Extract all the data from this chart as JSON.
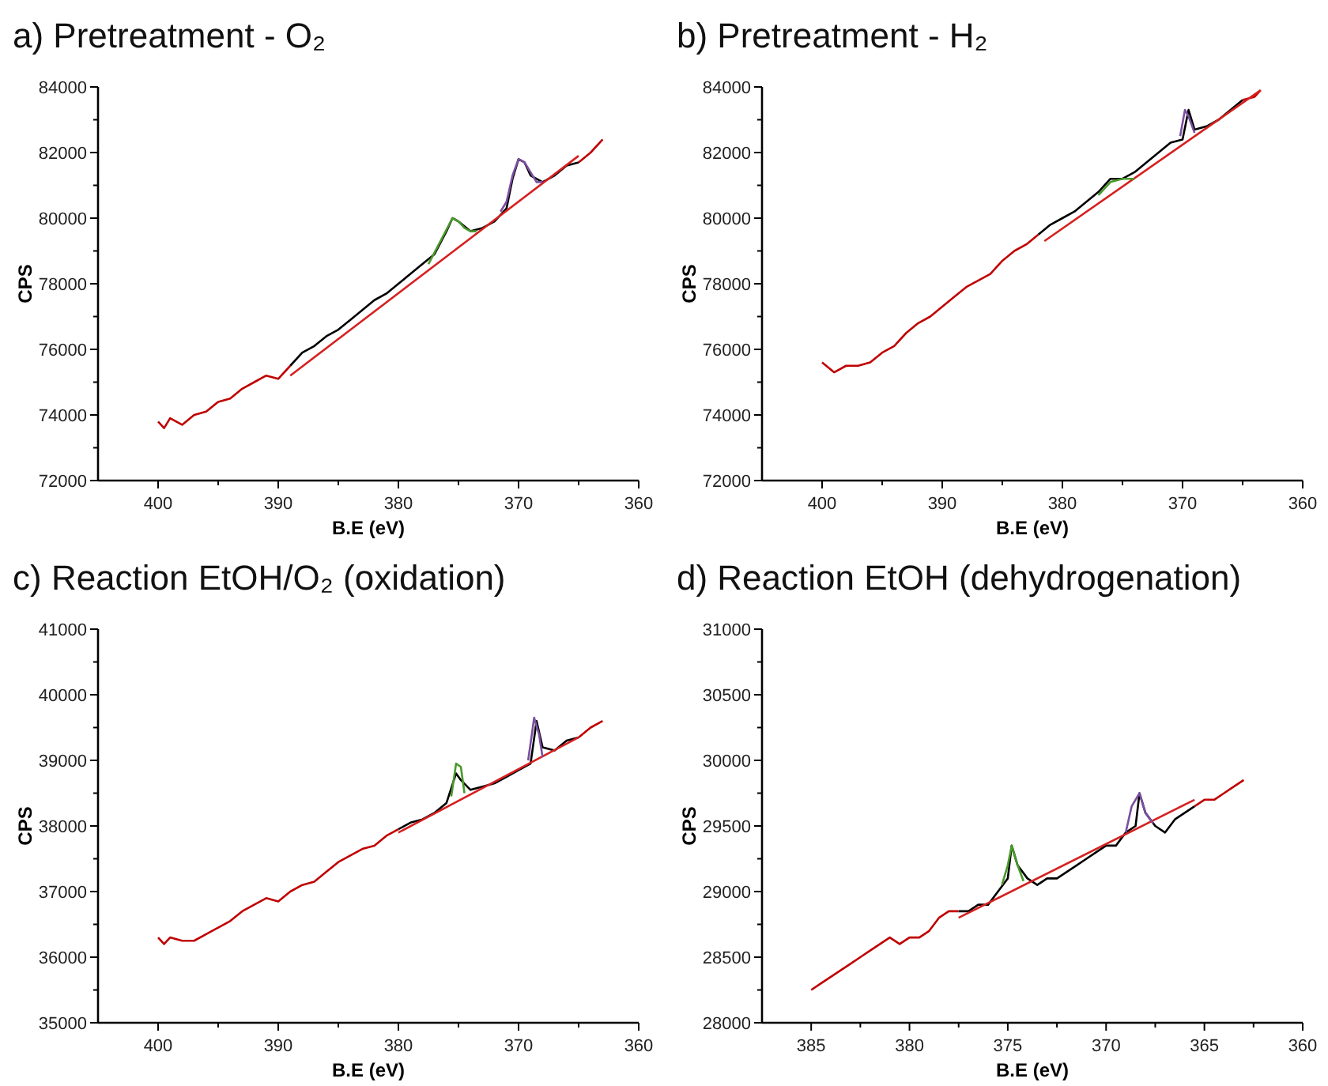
{
  "chart_data": [
    {
      "type": "line",
      "title": "a) Pretreatment - O₂",
      "xlabel": "B.E (eV)",
      "ylabel": "CPS",
      "xlim": [
        405,
        360
      ],
      "xticks": [
        400,
        {
          "value": 395,
          "label": null
        },
        390,
        {
          "value": 385,
          "label": null
        },
        380,
        {
          "value": 375,
          "label": null
        },
        370,
        {
          "value": 365,
          "label": null
        },
        360
      ],
      "ylim": [
        72000,
        84000
      ],
      "yticks": [
        72000,
        {
          "value": 73000,
          "label": null
        },
        74000,
        {
          "value": 75000,
          "label": null
        },
        76000,
        {
          "value": 77000,
          "label": null
        },
        78000,
        {
          "value": 79000,
          "label": null
        },
        80000,
        {
          "value": 81000,
          "label": null
        },
        82000,
        {
          "value": 83000,
          "label": null
        },
        84000
      ],
      "grid": false,
      "marker": "none",
      "series": [
        {
          "color": "#000000",
          "x": [
            389,
            388,
            387,
            386,
            385,
            384,
            383,
            382,
            381,
            380,
            379,
            378,
            377,
            376,
            375.5,
            375,
            374,
            373,
            372,
            371,
            370.5,
            370,
            369.5,
            369,
            368,
            367,
            366,
            365
          ],
          "values": [
            75500,
            75900,
            76100,
            76400,
            76600,
            76900,
            77200,
            77500,
            77700,
            78000,
            78300,
            78600,
            78900,
            79600,
            80000,
            79900,
            79600,
            79700,
            79900,
            80300,
            81200,
            81800,
            81700,
            81300,
            81100,
            81300,
            81600,
            81700
          ]
        },
        {
          "color": "#c00000",
          "x": [
            400,
            399.5,
            399,
            398,
            397,
            396,
            395,
            394,
            393,
            392,
            391,
            390,
            389
          ],
          "values": [
            73800,
            73600,
            73900,
            73700,
            74000,
            74100,
            74400,
            74500,
            74800,
            75000,
            75200,
            75100,
            75500
          ]
        },
        {
          "color": "#c00000",
          "x": [
            365,
            364,
            363
          ],
          "values": [
            81700,
            82000,
            82400
          ]
        },
        {
          "color": "#d62020",
          "x": [
            389,
            365
          ],
          "values": [
            75200,
            81900
          ]
        },
        {
          "color": "#4a9a2a",
          "x": [
            377.5,
            376.5,
            375.5,
            375,
            374.5,
            374,
            373.5
          ],
          "values": [
            78600,
            79300,
            80000,
            79900,
            79700,
            79600,
            79600
          ]
        },
        {
          "color": "#7b4fa0",
          "x": [
            371.5,
            371,
            370.5,
            370,
            369.5,
            369,
            368.5,
            368
          ],
          "values": [
            80200,
            80500,
            81300,
            81800,
            81700,
            81400,
            81100,
            81100
          ]
        }
      ]
    },
    {
      "type": "line",
      "title": "b) Pretreatment - H₂",
      "xlabel": "B.E (eV)",
      "ylabel": "CPS",
      "xlim": [
        405,
        360
      ],
      "xticks": [
        400,
        {
          "value": 395,
          "label": null
        },
        390,
        {
          "value": 385,
          "label": null
        },
        380,
        {
          "value": 375,
          "label": null
        },
        370,
        {
          "value": 365,
          "label": null
        },
        360
      ],
      "ylim": [
        72000,
        84000
      ],
      "yticks": [
        72000,
        {
          "value": 73000,
          "label": null
        },
        74000,
        {
          "value": 75000,
          "label": null
        },
        76000,
        {
          "value": 77000,
          "label": null
        },
        78000,
        {
          "value": 79000,
          "label": null
        },
        80000,
        {
          "value": 81000,
          "label": null
        },
        82000,
        {
          "value": 83000,
          "label": null
        },
        84000
      ],
      "grid": false,
      "marker": "none",
      "series": [
        {
          "color": "#000000",
          "x": [
            382,
            381,
            380,
            379,
            378,
            377,
            376,
            375,
            374,
            373,
            372,
            371,
            370,
            369.5,
            369,
            368,
            367,
            366,
            365
          ],
          "values": [
            79500,
            79800,
            80000,
            80200,
            80500,
            80800,
            81200,
            81200,
            81400,
            81700,
            82000,
            82300,
            82400,
            83300,
            82700,
            82800,
            83000,
            83300,
            83600
          ]
        },
        {
          "color": "#c00000",
          "x": [
            400,
            399,
            398,
            397,
            396,
            395,
            394,
            393,
            392,
            391,
            390,
            389,
            388,
            387,
            386,
            385,
            384,
            383,
            382
          ],
          "values": [
            75600,
            75300,
            75500,
            75500,
            75600,
            75900,
            76100,
            76500,
            76800,
            77000,
            77300,
            77600,
            77900,
            78100,
            78300,
            78700,
            79000,
            79200,
            79500
          ]
        },
        {
          "color": "#c00000",
          "x": [
            365,
            364,
            363.5
          ],
          "values": [
            83600,
            83700,
            83900
          ]
        },
        {
          "color": "#d62020",
          "x": [
            381.5,
            363.5
          ],
          "values": [
            79300,
            83900
          ]
        },
        {
          "color": "#4a9a2a",
          "x": [
            377,
            376,
            375,
            374
          ],
          "values": [
            80700,
            81100,
            81200,
            81200
          ]
        },
        {
          "color": "#7b4fa0",
          "x": [
            370.2,
            369.8,
            369.5,
            369
          ],
          "values": [
            82500,
            83300,
            83100,
            82600
          ]
        }
      ]
    },
    {
      "type": "line",
      "title": "c) Reaction EtOH/O₂ (oxidation)",
      "xlabel": "B.E (eV)",
      "ylabel": "CPS",
      "xlim": [
        405,
        360
      ],
      "xticks": [
        400,
        {
          "value": 395,
          "label": null
        },
        390,
        {
          "value": 385,
          "label": null
        },
        380,
        {
          "value": 375,
          "label": null
        },
        370,
        {
          "value": 365,
          "label": null
        },
        360
      ],
      "ylim": [
        35000,
        41000
      ],
      "yticks": [
        35000,
        {
          "value": 35500,
          "label": null
        },
        36000,
        {
          "value": 36500,
          "label": null
        },
        37000,
        {
          "value": 37500,
          "label": null
        },
        38000,
        {
          "value": 38500,
          "label": null
        },
        39000,
        {
          "value": 39500,
          "label": null
        },
        40000,
        {
          "value": 40500,
          "label": null
        },
        41000
      ],
      "grid": false,
      "marker": "none",
      "series": [
        {
          "color": "#000000",
          "x": [
            380,
            379,
            378,
            377,
            376,
            375.2,
            374.8,
            374,
            373,
            372,
            371,
            370,
            369,
            368.5,
            368,
            367,
            366,
            365
          ],
          "values": [
            37950,
            38050,
            38100,
            38200,
            38350,
            38800,
            38700,
            38550,
            38600,
            38650,
            38750,
            38850,
            38950,
            39600,
            39200,
            39150,
            39300,
            39350
          ]
        },
        {
          "color": "#c00000",
          "x": [
            400,
            399.5,
            399,
            398,
            397,
            396,
            395,
            394,
            393,
            392,
            391,
            390,
            389,
            388,
            387,
            386,
            385,
            384,
            383,
            382,
            381,
            380
          ],
          "values": [
            36300,
            36200,
            36300,
            36250,
            36250,
            36350,
            36450,
            36550,
            36700,
            36800,
            36900,
            36850,
            37000,
            37100,
            37150,
            37300,
            37450,
            37550,
            37650,
            37700,
            37850,
            37950
          ]
        },
        {
          "color": "#c00000",
          "x": [
            365,
            364,
            363
          ],
          "values": [
            39350,
            39500,
            39600
          ]
        },
        {
          "color": "#d62020",
          "x": [
            380,
            365
          ],
          "values": [
            37900,
            39350
          ]
        },
        {
          "color": "#4a9a2a",
          "x": [
            375.6,
            375.2,
            374.8,
            374.5
          ],
          "values": [
            38450,
            38950,
            38900,
            38500
          ]
        },
        {
          "color": "#7b4fa0",
          "x": [
            369.2,
            368.7,
            368.3,
            368
          ],
          "values": [
            39000,
            39650,
            39400,
            39050
          ]
        }
      ]
    },
    {
      "type": "line",
      "title": "d) Reaction EtOH (dehydrogenation)",
      "xlabel": "B.E (eV)",
      "ylabel": "CPS",
      "xlim": [
        387.5,
        360
      ],
      "xticks": [
        385,
        {
          "value": 382.5,
          "label": null
        },
        380,
        {
          "value": 377.5,
          "label": null
        },
        375,
        {
          "value": 372.5,
          "label": null
        },
        370,
        {
          "value": 367.5,
          "label": null
        },
        365,
        {
          "value": 362.5,
          "label": null
        },
        360
      ],
      "ylim": [
        28000,
        31000
      ],
      "yticks": [
        28000,
        {
          "value": 28250,
          "label": null
        },
        28500,
        {
          "value": 28750,
          "label": null
        },
        29000,
        {
          "value": 29250,
          "label": null
        },
        29500,
        {
          "value": 29750,
          "label": null
        },
        30000,
        {
          "value": 30250,
          "label": null
        },
        30500,
        {
          "value": 30750,
          "label": null
        },
        31000
      ],
      "grid": false,
      "marker": "none",
      "series": [
        {
          "color": "#000000",
          "x": [
            377.5,
            377,
            376.5,
            376,
            375.5,
            375,
            374.8,
            374.5,
            374,
            373.5,
            373,
            372.5,
            372,
            371.5,
            371,
            370.5,
            370,
            369.5,
            369,
            368.5,
            368.3,
            368,
            367.5,
            367,
            366.5,
            366,
            365.5
          ],
          "values": [
            28850,
            28850,
            28900,
            28900,
            29000,
            29100,
            29350,
            29200,
            29100,
            29050,
            29100,
            29100,
            29150,
            29200,
            29250,
            29300,
            29350,
            29350,
            29450,
            29500,
            29750,
            29600,
            29500,
            29450,
            29550,
            29600,
            29650
          ]
        },
        {
          "color": "#c00000",
          "x": [
            385,
            384.5,
            384,
            383.5,
            383,
            382.5,
            382,
            381.5,
            381,
            380.5,
            380,
            379.5,
            379,
            378.5,
            378,
            377.5
          ],
          "values": [
            28250,
            28300,
            28350,
            28400,
            28450,
            28500,
            28550,
            28600,
            28650,
            28600,
            28650,
            28650,
            28700,
            28800,
            28850,
            28850
          ]
        },
        {
          "color": "#c00000",
          "x": [
            365.5,
            365,
            364.5,
            364,
            363.5,
            363
          ],
          "values": [
            29650,
            29700,
            29700,
            29750,
            29800,
            29850
          ]
        },
        {
          "color": "#d62020",
          "x": [
            377.5,
            365.5
          ],
          "values": [
            28800,
            29700
          ]
        },
        {
          "color": "#4a9a2a",
          "x": [
            375.3,
            375,
            374.8,
            374.5,
            374.2
          ],
          "values": [
            29050,
            29200,
            29350,
            29200,
            29080
          ]
        },
        {
          "color": "#7b4fa0",
          "x": [
            369,
            368.7,
            368.3,
            368,
            367.6
          ],
          "values": [
            29450,
            29650,
            29750,
            29600,
            29520
          ]
        }
      ]
    }
  ]
}
